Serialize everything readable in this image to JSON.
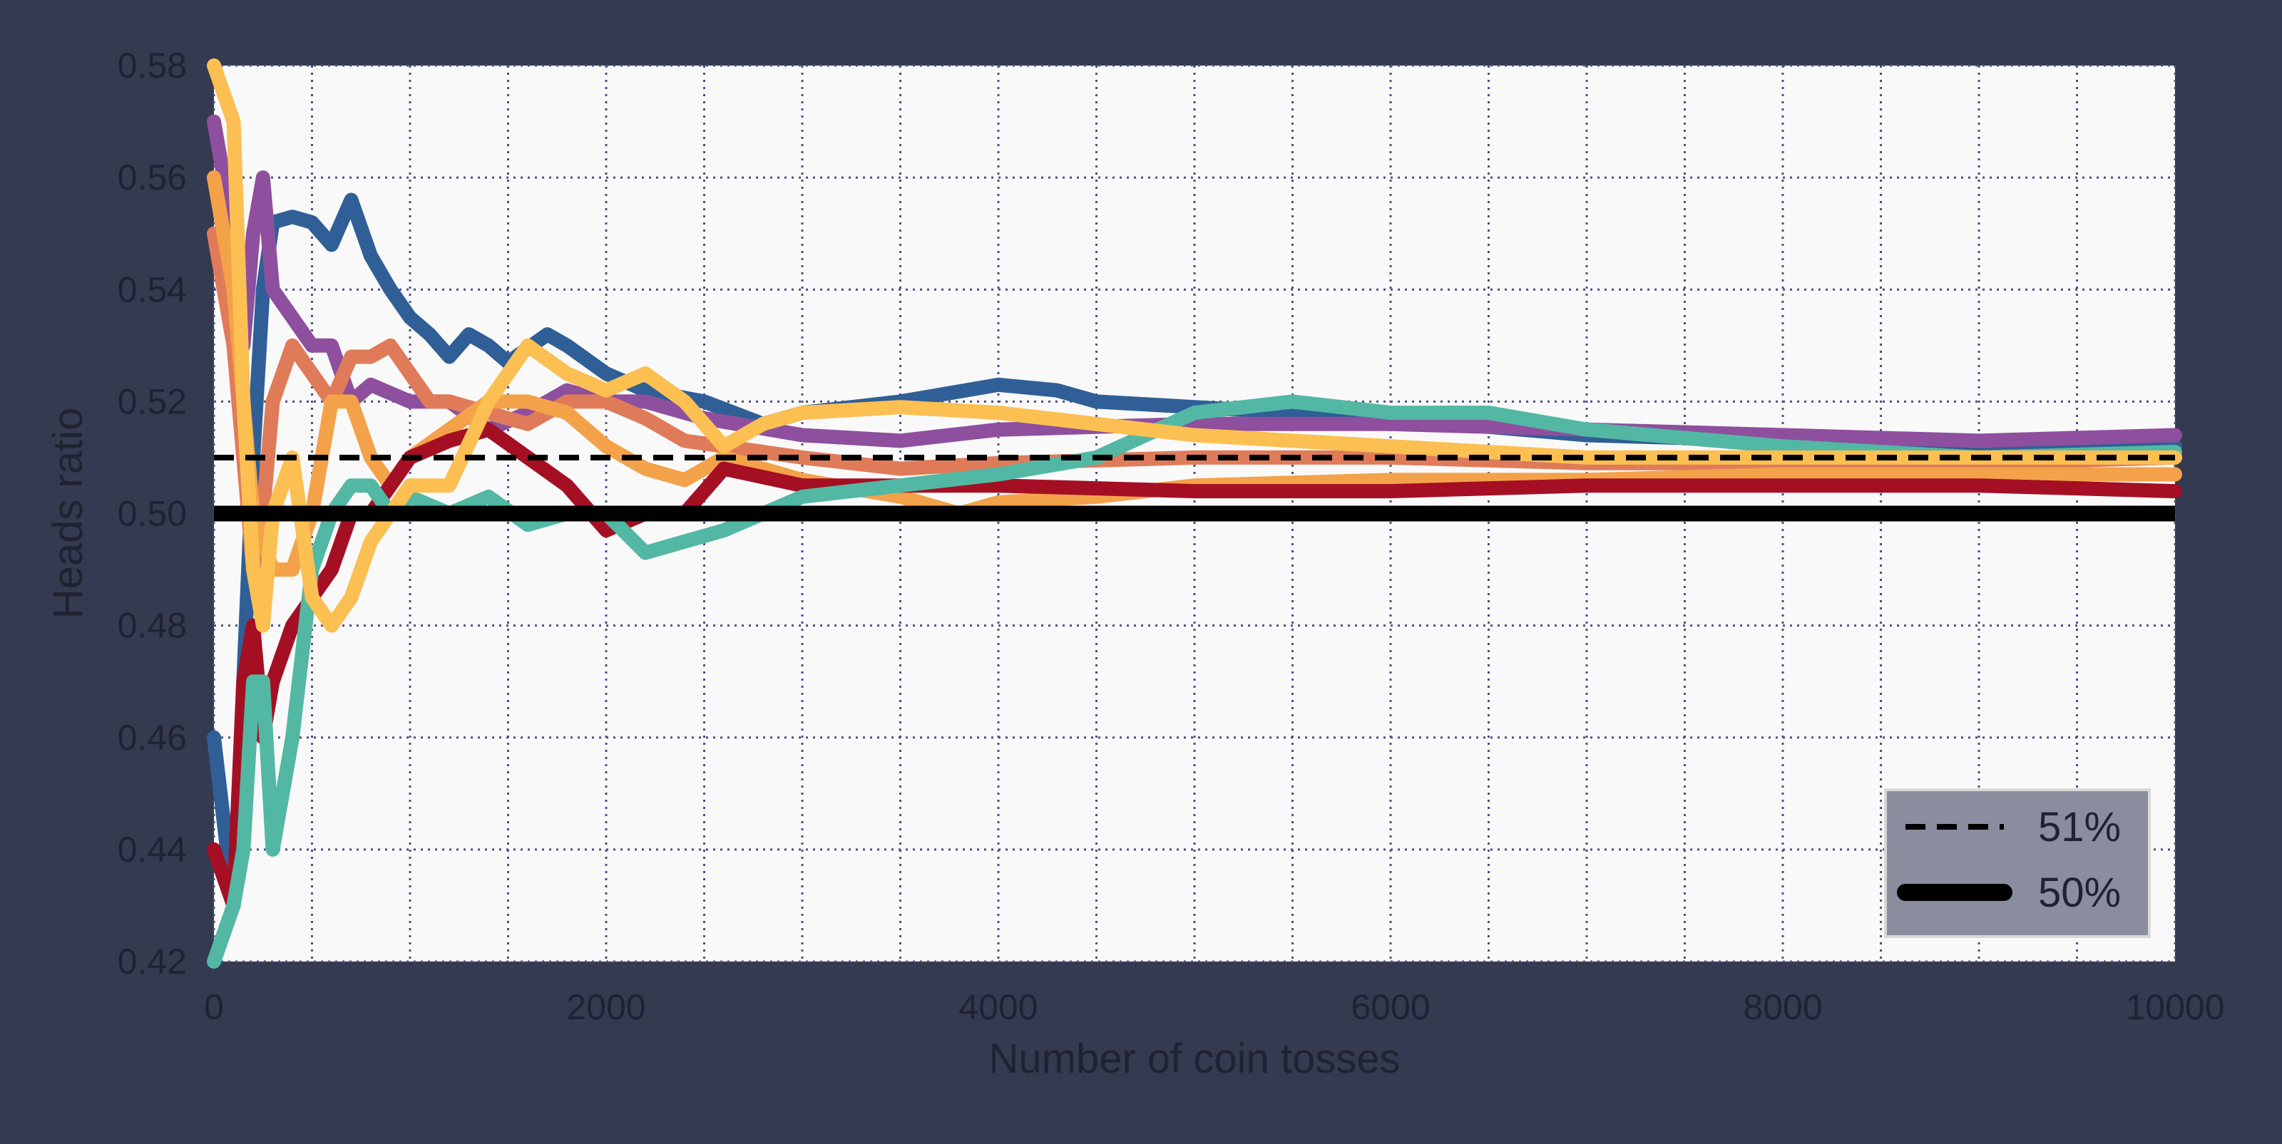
{
  "chart_data": {
    "type": "line",
    "title": "",
    "xlabel": "Number of coin tosses",
    "ylabel": "Heads ratio",
    "xlim": [
      0,
      10000
    ],
    "ylim": [
      0.42,
      0.58
    ],
    "xticks": [
      0,
      2000,
      4000,
      6000,
      8000,
      10000
    ],
    "xtick_labels": [
      "0",
      "2000",
      "4000",
      "6000",
      "8000",
      "10000"
    ],
    "yticks": [
      0.42,
      0.44,
      0.46,
      0.48,
      0.5,
      0.52,
      0.54,
      0.56,
      0.58
    ],
    "ytick_labels": [
      "0.42",
      "0.44",
      "0.46",
      "0.48",
      "0.50",
      "0.52",
      "0.54",
      "0.56",
      "0.58"
    ],
    "grid": true,
    "legend_position": "lower-right",
    "reference_lines": [
      {
        "label": "51%",
        "y": 0.51,
        "style": "dashed",
        "color": "#000000"
      },
      {
        "label": "50%",
        "y": 0.5,
        "style": "solid",
        "color": "#000000"
      }
    ],
    "series": [
      {
        "color": "#2f5f96",
        "x": [
          0,
          100,
          150,
          200,
          250,
          300,
          400,
          500,
          600,
          700,
          800,
          900,
          1000,
          1100,
          1200,
          1300,
          1400,
          1500,
          1700,
          1800,
          2000,
          2200,
          2500,
          2800,
          3000,
          3500,
          4000,
          4300,
          4500,
          5000,
          6000,
          7000,
          8000,
          9000,
          10000
        ],
        "y": [
          0.46,
          0.43,
          0.47,
          0.51,
          0.54,
          0.552,
          0.553,
          0.552,
          0.548,
          0.556,
          0.546,
          0.54,
          0.535,
          0.532,
          0.528,
          0.532,
          0.53,
          0.527,
          0.532,
          0.53,
          0.525,
          0.522,
          0.52,
          0.516,
          0.518,
          0.52,
          0.523,
          0.522,
          0.52,
          0.519,
          0.517,
          0.514,
          0.513,
          0.512,
          0.512
        ]
      },
      {
        "color": "#8e4f9e",
        "x": [
          0,
          100,
          150,
          200,
          250,
          300,
          400,
          500,
          600,
          700,
          800,
          1000,
          1200,
          1400,
          1600,
          1800,
          2000,
          2200,
          2500,
          3000,
          3500,
          4000,
          5000,
          6000,
          7000,
          8000,
          9000,
          10000
        ],
        "y": [
          0.57,
          0.55,
          0.53,
          0.55,
          0.56,
          0.54,
          0.535,
          0.53,
          0.53,
          0.52,
          0.523,
          0.52,
          0.52,
          0.515,
          0.518,
          0.522,
          0.52,
          0.52,
          0.517,
          0.514,
          0.513,
          0.515,
          0.516,
          0.516,
          0.515,
          0.514,
          0.513,
          0.514
        ]
      },
      {
        "color": "#e07b5a",
        "x": [
          0,
          100,
          200,
          250,
          300,
          400,
          500,
          600,
          700,
          800,
          900,
          1000,
          1100,
          1200,
          1400,
          1600,
          1800,
          2000,
          2200,
          2400,
          2600,
          3000,
          3500,
          4000,
          5000,
          6000,
          7000,
          8000,
          9000,
          10000
        ],
        "y": [
          0.55,
          0.53,
          0.49,
          0.5,
          0.52,
          0.53,
          0.525,
          0.52,
          0.528,
          0.528,
          0.53,
          0.525,
          0.52,
          0.52,
          0.518,
          0.516,
          0.52,
          0.52,
          0.517,
          0.513,
          0.512,
          0.51,
          0.508,
          0.509,
          0.51,
          0.51,
          0.509,
          0.509,
          0.509,
          0.51
        ]
      },
      {
        "color": "#f3a24a",
        "x": [
          0,
          100,
          200,
          300,
          400,
          500,
          600,
          700,
          800,
          900,
          1000,
          1200,
          1400,
          1600,
          1800,
          2000,
          2200,
          2400,
          2600,
          3000,
          3500,
          3800,
          4000,
          4500,
          5000,
          6000,
          7000,
          8000,
          9000,
          10000
        ],
        "y": [
          0.56,
          0.54,
          0.5,
          0.49,
          0.49,
          0.5,
          0.52,
          0.52,
          0.51,
          0.505,
          0.51,
          0.515,
          0.52,
          0.52,
          0.518,
          0.512,
          0.508,
          0.506,
          0.51,
          0.506,
          0.503,
          0.5,
          0.502,
          0.503,
          0.505,
          0.506,
          0.506,
          0.507,
          0.507,
          0.507
        ]
      },
      {
        "color": "#a50f24",
        "x": [
          0,
          100,
          150,
          200,
          250,
          300,
          400,
          500,
          600,
          700,
          800,
          900,
          1000,
          1200,
          1400,
          1600,
          1800,
          2000,
          2200,
          2400,
          2600,
          3000,
          3500,
          4000,
          5000,
          6000,
          7000,
          8000,
          9000,
          10000
        ],
        "y": [
          0.44,
          0.43,
          0.47,
          0.48,
          0.46,
          0.47,
          0.48,
          0.485,
          0.49,
          0.5,
          0.5,
          0.505,
          0.51,
          0.513,
          0.515,
          0.51,
          0.505,
          0.497,
          0.5,
          0.5,
          0.508,
          0.505,
          0.505,
          0.505,
          0.504,
          0.504,
          0.505,
          0.505,
          0.505,
          0.504
        ]
      },
      {
        "color": "#52b8a4",
        "x": [
          0,
          100,
          150,
          200,
          250,
          300,
          400,
          500,
          600,
          700,
          800,
          900,
          1000,
          1200,
          1400,
          1600,
          1800,
          2000,
          2200,
          2400,
          2600,
          3000,
          3500,
          4000,
          4500,
          5000,
          5500,
          6000,
          6500,
          7000,
          8000,
          9000,
          10000
        ],
        "y": [
          0.42,
          0.43,
          0.44,
          0.47,
          0.47,
          0.44,
          0.46,
          0.49,
          0.5,
          0.505,
          0.505,
          0.5,
          0.503,
          0.5,
          0.503,
          0.498,
          0.5,
          0.5,
          0.493,
          0.495,
          0.497,
          0.503,
          0.505,
          0.507,
          0.51,
          0.518,
          0.52,
          0.518,
          0.518,
          0.515,
          0.512,
          0.51,
          0.511
        ]
      },
      {
        "color": "#fbbf52",
        "x": [
          0,
          100,
          150,
          200,
          250,
          300,
          400,
          500,
          600,
          700,
          800,
          900,
          1000,
          1200,
          1400,
          1600,
          1800,
          2000,
          2200,
          2400,
          2600,
          2800,
          3000,
          3500,
          4000,
          4500,
          5000,
          6000,
          7000,
          8000,
          9000,
          10000
        ],
        "y": [
          0.58,
          0.57,
          0.52,
          0.49,
          0.48,
          0.5,
          0.51,
          0.485,
          0.48,
          0.485,
          0.495,
          0.5,
          0.505,
          0.505,
          0.52,
          0.53,
          0.525,
          0.522,
          0.525,
          0.52,
          0.512,
          0.516,
          0.518,
          0.519,
          0.518,
          0.516,
          0.514,
          0.512,
          0.51,
          0.51,
          0.51,
          0.51
        ]
      }
    ]
  }
}
